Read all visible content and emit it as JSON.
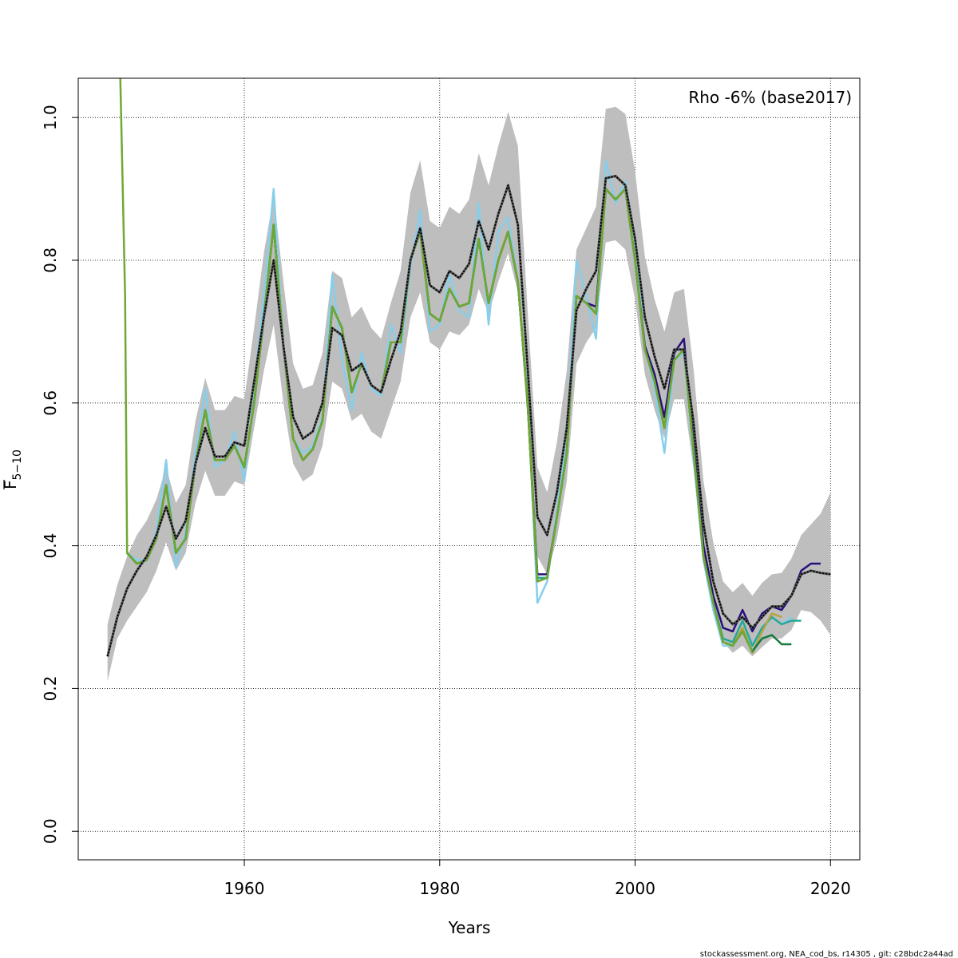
{
  "chart_data": {
    "type": "line",
    "title": "",
    "xlabel": "Years",
    "ylabel_main": "F",
    "ylabel_sub": "5−10",
    "annotation": "Rho -6% (base2017)",
    "footer": "stockassessment.org, NEA_cod_bs, r14305 , git: c28bdc2a44ad",
    "xlim": [
      1943,
      2023
    ],
    "ylim": [
      -0.04,
      1.055
    ],
    "x_ticks": [
      1960,
      1980,
      2000,
      2020
    ],
    "y_ticks": [
      0.0,
      0.2,
      0.4,
      0.6,
      0.8,
      1.0
    ],
    "x_tick_labels": [
      "1960",
      "1980",
      "2000",
      "2020"
    ],
    "y_tick_labels": [
      "0.0",
      "0.2",
      "0.4",
      "0.6",
      "0.8",
      "1.0"
    ],
    "grid": true,
    "ci_color": "#bebebe",
    "series": [
      {
        "color": "#87ceeb",
        "x": [
          1948,
          1949,
          1950,
          1951,
          1952,
          1953,
          1954,
          1955,
          1956,
          1957,
          1958,
          1959,
          1960,
          1961,
          1962,
          1963,
          1964,
          1965,
          1966,
          1967,
          1968,
          1969,
          1970,
          1971,
          1972,
          1973,
          1974,
          1975,
          1976,
          1977,
          1978,
          1979,
          1980,
          1981,
          1982,
          1983,
          1984,
          1985,
          1986,
          1987,
          1988,
          1989,
          1990,
          1991,
          1992,
          1993,
          1994,
          1995,
          1996,
          1997,
          1998,
          1999,
          2000,
          2001,
          2002,
          2003,
          2004,
          2005,
          2006,
          2007,
          2008,
          2009,
          2010,
          2011,
          2012,
          2013,
          2014,
          2015,
          2016
        ],
        "values": [
          0.39,
          0.38,
          0.38,
          0.42,
          0.52,
          0.37,
          0.42,
          0.53,
          0.62,
          0.51,
          0.52,
          0.56,
          0.49,
          0.62,
          0.75,
          0.9,
          0.68,
          0.55,
          0.53,
          0.54,
          0.58,
          0.78,
          0.66,
          0.59,
          0.67,
          0.62,
          0.61,
          0.71,
          0.67,
          0.79,
          0.87,
          0.7,
          0.71,
          0.78,
          0.73,
          0.72,
          0.88,
          0.71,
          0.84,
          0.86,
          0.77,
          0.61,
          0.32,
          0.35,
          0.45,
          0.55,
          0.8,
          0.75,
          0.69,
          0.94,
          0.88,
          0.91,
          0.82,
          0.68,
          0.62,
          0.53,
          0.66,
          0.67,
          0.52,
          0.38,
          0.31,
          0.26,
          0.26,
          0.28,
          0.26,
          0.28,
          0.3,
          0.29,
          0.3
        ]
      },
      {
        "color": "#2a0f7a",
        "x": [
          1948,
          1949,
          1950,
          1951,
          1952,
          1953,
          1954,
          1955,
          1956,
          1957,
          1958,
          1959,
          1960,
          1961,
          1962,
          1963,
          1964,
          1965,
          1966,
          1967,
          1968,
          1969,
          1970,
          1971,
          1972,
          1973,
          1974,
          1975,
          1976,
          1977,
          1978,
          1979,
          1980,
          1981,
          1982,
          1983,
          1984,
          1985,
          1986,
          1987,
          1988,
          1989,
          1990,
          1991,
          1992,
          1993,
          1994,
          1995,
          1996,
          1997,
          1998,
          1999,
          2000,
          2001,
          2002,
          2003,
          2004,
          2005,
          2006,
          2007,
          2008,
          2009,
          2010,
          2011,
          2012,
          2013,
          2014,
          2015,
          2016,
          2017,
          2018,
          2019
        ],
        "values": [
          0.39,
          0.375,
          0.38,
          0.41,
          0.485,
          0.39,
          0.41,
          0.515,
          0.59,
          0.52,
          0.52,
          0.54,
          0.51,
          0.6,
          0.72,
          0.85,
          0.68,
          0.55,
          0.52,
          0.535,
          0.575,
          0.735,
          0.705,
          0.615,
          0.655,
          0.625,
          0.615,
          0.685,
          0.685,
          0.8,
          0.84,
          0.725,
          0.715,
          0.76,
          0.735,
          0.74,
          0.83,
          0.74,
          0.8,
          0.84,
          0.77,
          0.6,
          0.36,
          0.36,
          0.44,
          0.53,
          0.75,
          0.74,
          0.735,
          0.9,
          0.885,
          0.9,
          0.8,
          0.68,
          0.64,
          0.58,
          0.67,
          0.69,
          0.54,
          0.4,
          0.33,
          0.285,
          0.28,
          0.31,
          0.28,
          0.305,
          0.315,
          0.31,
          0.33,
          0.365,
          0.375,
          0.375
        ]
      },
      {
        "color": "#23a89a",
        "x": [
          1948,
          1949,
          1950,
          1951,
          1952,
          1953,
          1954,
          1955,
          1956,
          1957,
          1958,
          1959,
          1960,
          1961,
          1962,
          1963,
          1964,
          1965,
          1966,
          1967,
          1968,
          1969,
          1970,
          1971,
          1972,
          1973,
          1974,
          1975,
          1976,
          1977,
          1978,
          1979,
          1980,
          1981,
          1982,
          1983,
          1984,
          1985,
          1986,
          1987,
          1988,
          1989,
          1990,
          1991,
          1992,
          1993,
          1994,
          1995,
          1996,
          1997,
          1998,
          1999,
          2000,
          2001,
          2002,
          2003,
          2004,
          2005,
          2006,
          2007,
          2008,
          2009,
          2010,
          2011,
          2012,
          2013,
          2014,
          2015,
          2016,
          2017
        ],
        "values": [
          0.39,
          0.375,
          0.38,
          0.41,
          0.485,
          0.39,
          0.41,
          0.515,
          0.59,
          0.52,
          0.52,
          0.54,
          0.51,
          0.6,
          0.72,
          0.85,
          0.68,
          0.55,
          0.52,
          0.535,
          0.575,
          0.735,
          0.705,
          0.615,
          0.655,
          0.625,
          0.615,
          0.685,
          0.685,
          0.8,
          0.84,
          0.725,
          0.715,
          0.76,
          0.735,
          0.74,
          0.83,
          0.74,
          0.8,
          0.84,
          0.77,
          0.6,
          0.355,
          0.355,
          0.44,
          0.53,
          0.75,
          0.74,
          0.725,
          0.9,
          0.885,
          0.9,
          0.8,
          0.675,
          0.63,
          0.565,
          0.66,
          0.675,
          0.53,
          0.385,
          0.32,
          0.27,
          0.265,
          0.295,
          0.26,
          0.285,
          0.3,
          0.29,
          0.295,
          0.295
        ]
      },
      {
        "color": "#b8a23c",
        "x": [
          1948,
          1949,
          1950,
          1951,
          1952,
          1953,
          1954,
          1955,
          1956,
          1957,
          1958,
          1959,
          1960,
          1961,
          1962,
          1963,
          1964,
          1965,
          1966,
          1967,
          1968,
          1969,
          1970,
          1971,
          1972,
          1973,
          1974,
          1975,
          1976,
          1977,
          1978,
          1979,
          1980,
          1981,
          1982,
          1983,
          1984,
          1985,
          1986,
          1987,
          1988,
          1989,
          1990,
          1991,
          1992,
          1993,
          1994,
          1995,
          1996,
          1997,
          1998,
          1999,
          2000,
          2001,
          2002,
          2003,
          2004,
          2005,
          2006,
          2007,
          2008,
          2009,
          2010,
          2011,
          2012,
          2013,
          2014,
          2015
        ],
        "values": [
          0.39,
          0.375,
          0.38,
          0.41,
          0.485,
          0.39,
          0.41,
          0.515,
          0.59,
          0.52,
          0.52,
          0.54,
          0.51,
          0.6,
          0.72,
          0.85,
          0.68,
          0.55,
          0.52,
          0.535,
          0.575,
          0.735,
          0.705,
          0.615,
          0.655,
          0.625,
          0.615,
          0.685,
          0.685,
          0.8,
          0.84,
          0.725,
          0.715,
          0.76,
          0.735,
          0.74,
          0.83,
          0.74,
          0.8,
          0.84,
          0.77,
          0.6,
          0.35,
          0.355,
          0.44,
          0.53,
          0.75,
          0.74,
          0.725,
          0.9,
          0.885,
          0.9,
          0.8,
          0.675,
          0.63,
          0.565,
          0.66,
          0.675,
          0.53,
          0.385,
          0.32,
          0.265,
          0.26,
          0.285,
          0.25,
          0.28,
          0.305,
          0.3
        ]
      },
      {
        "color": "#157a3a",
        "x": [
          1948,
          1949,
          1950,
          1951,
          1952,
          1953,
          1954,
          1955,
          1956,
          1957,
          1958,
          1959,
          1960,
          1961,
          1962,
          1963,
          1964,
          1965,
          1966,
          1967,
          1968,
          1969,
          1970,
          1971,
          1972,
          1973,
          1974,
          1975,
          1976,
          1977,
          1978,
          1979,
          1980,
          1981,
          1982,
          1983,
          1984,
          1985,
          1986,
          1987,
          1988,
          1989,
          1990,
          1991,
          1992,
          1993,
          1994,
          1995,
          1996,
          1997,
          1998,
          1999,
          2000,
          2001,
          2002,
          2003,
          2004,
          2005,
          2006,
          2007,
          2008,
          2009,
          2010,
          2011,
          2012,
          2013,
          2014,
          2015,
          2016
        ],
        "values": [
          0.39,
          0.375,
          0.38,
          0.41,
          0.485,
          0.39,
          0.41,
          0.515,
          0.59,
          0.52,
          0.52,
          0.54,
          0.51,
          0.6,
          0.72,
          0.85,
          0.68,
          0.55,
          0.52,
          0.535,
          0.575,
          0.735,
          0.705,
          0.615,
          0.655,
          0.625,
          0.615,
          0.685,
          0.685,
          0.8,
          0.84,
          0.725,
          0.715,
          0.76,
          0.735,
          0.74,
          0.83,
          0.74,
          0.8,
          0.84,
          0.77,
          0.6,
          0.35,
          0.355,
          0.44,
          0.53,
          0.75,
          0.74,
          0.725,
          0.9,
          0.885,
          0.9,
          0.8,
          0.675,
          0.63,
          0.565,
          0.66,
          0.675,
          0.53,
          0.385,
          0.32,
          0.265,
          0.26,
          0.28,
          0.252,
          0.27,
          0.275,
          0.262,
          0.262
        ]
      },
      {
        "color": "#6fa832",
        "x": [
          1947.3,
          1947.8,
          1948,
          1949,
          1950,
          1951,
          1952,
          1953,
          1954,
          1955,
          1956,
          1957,
          1958,
          1959,
          1960,
          1961,
          1962,
          1963,
          1964,
          1965,
          1966,
          1967,
          1968,
          1969,
          1970,
          1971,
          1972,
          1973,
          1974,
          1975,
          1976,
          1977,
          1978,
          1979,
          1980,
          1981,
          1982,
          1983,
          1984,
          1985,
          1986,
          1987,
          1988,
          1989,
          1990,
          1991,
          1992,
          1993,
          1994,
          1995,
          1996,
          1997,
          1998,
          1999,
          2000,
          2001,
          2002,
          2003,
          2004,
          2005,
          2006,
          2007,
          2008,
          2009,
          2010,
          2011,
          2012
        ],
        "values": [
          1.06,
          0.75,
          0.39,
          0.375,
          0.38,
          0.41,
          0.485,
          0.39,
          0.41,
          0.515,
          0.59,
          0.52,
          0.52,
          0.54,
          0.51,
          0.6,
          0.72,
          0.85,
          0.68,
          0.55,
          0.52,
          0.535,
          0.575,
          0.735,
          0.705,
          0.615,
          0.655,
          0.625,
          0.615,
          0.685,
          0.685,
          0.8,
          0.84,
          0.725,
          0.715,
          0.76,
          0.735,
          0.74,
          0.83,
          0.74,
          0.8,
          0.84,
          0.77,
          0.6,
          0.35,
          0.355,
          0.44,
          0.53,
          0.75,
          0.74,
          0.725,
          0.9,
          0.885,
          0.9,
          0.8,
          0.675,
          0.63,
          0.565,
          0.66,
          0.675,
          0.53,
          0.385,
          0.32,
          0.265,
          0.26,
          0.28,
          0.252
        ]
      }
    ],
    "base": {
      "color": "#000000",
      "x": [
        1946,
        1947,
        1948,
        1949,
        1950,
        1951,
        1952,
        1953,
        1954,
        1955,
        1956,
        1957,
        1958,
        1959,
        1960,
        1961,
        1962,
        1963,
        1964,
        1965,
        1966,
        1967,
        1968,
        1969,
        1970,
        1971,
        1972,
        1973,
        1974,
        1975,
        1976,
        1977,
        1978,
        1979,
        1980,
        1981,
        1982,
        1983,
        1984,
        1985,
        1986,
        1987,
        1988,
        1989,
        1990,
        1991,
        1992,
        1993,
        1994,
        1995,
        1996,
        1997,
        1998,
        1999,
        2000,
        2001,
        2002,
        2003,
        2004,
        2005,
        2006,
        2007,
        2008,
        2009,
        2010,
        2011,
        2012,
        2013,
        2014,
        2015,
        2016,
        2017,
        2018,
        2019,
        2020
      ],
      "values": [
        0.245,
        0.3,
        0.34,
        0.365,
        0.385,
        0.415,
        0.455,
        0.41,
        0.435,
        0.515,
        0.565,
        0.525,
        0.525,
        0.545,
        0.54,
        0.63,
        0.72,
        0.8,
        0.68,
        0.58,
        0.55,
        0.56,
        0.6,
        0.705,
        0.695,
        0.645,
        0.655,
        0.625,
        0.615,
        0.66,
        0.7,
        0.8,
        0.845,
        0.765,
        0.755,
        0.785,
        0.775,
        0.795,
        0.855,
        0.815,
        0.865,
        0.905,
        0.85,
        0.65,
        0.44,
        0.415,
        0.475,
        0.565,
        0.73,
        0.76,
        0.785,
        0.915,
        0.918,
        0.905,
        0.83,
        0.72,
        0.665,
        0.62,
        0.675,
        0.675,
        0.57,
        0.43,
        0.35,
        0.305,
        0.29,
        0.3,
        0.285,
        0.3,
        0.315,
        0.315,
        0.33,
        0.36,
        0.365,
        0.362,
        0.36
      ],
      "lower": [
        0.21,
        0.27,
        0.295,
        0.315,
        0.335,
        0.365,
        0.405,
        0.365,
        0.39,
        0.46,
        0.505,
        0.47,
        0.47,
        0.49,
        0.485,
        0.565,
        0.645,
        0.71,
        0.6,
        0.515,
        0.49,
        0.5,
        0.54,
        0.63,
        0.62,
        0.575,
        0.585,
        0.56,
        0.55,
        0.59,
        0.63,
        0.72,
        0.755,
        0.685,
        0.675,
        0.7,
        0.695,
        0.71,
        0.76,
        0.725,
        0.77,
        0.81,
        0.755,
        0.575,
        0.385,
        0.36,
        0.41,
        0.49,
        0.655,
        0.685,
        0.705,
        0.825,
        0.828,
        0.815,
        0.745,
        0.64,
        0.59,
        0.55,
        0.605,
        0.605,
        0.505,
        0.38,
        0.305,
        0.265,
        0.25,
        0.26,
        0.245,
        0.258,
        0.27,
        0.27,
        0.282,
        0.31,
        0.307,
        0.295,
        0.275
      ],
      "upper": [
        0.29,
        0.345,
        0.385,
        0.415,
        0.435,
        0.465,
        0.51,
        0.46,
        0.485,
        0.575,
        0.635,
        0.59,
        0.59,
        0.61,
        0.605,
        0.705,
        0.81,
        0.89,
        0.77,
        0.655,
        0.62,
        0.625,
        0.67,
        0.785,
        0.775,
        0.72,
        0.735,
        0.705,
        0.69,
        0.74,
        0.785,
        0.895,
        0.94,
        0.855,
        0.845,
        0.875,
        0.865,
        0.885,
        0.95,
        0.905,
        0.96,
        1.008,
        0.96,
        0.73,
        0.51,
        0.475,
        0.545,
        0.645,
        0.815,
        0.845,
        0.875,
        1.012,
        1.015,
        1.005,
        0.925,
        0.805,
        0.745,
        0.7,
        0.755,
        0.76,
        0.645,
        0.49,
        0.405,
        0.35,
        0.335,
        0.348,
        0.33,
        0.348,
        0.36,
        0.362,
        0.382,
        0.415,
        0.43,
        0.445,
        0.475
      ]
    }
  }
}
